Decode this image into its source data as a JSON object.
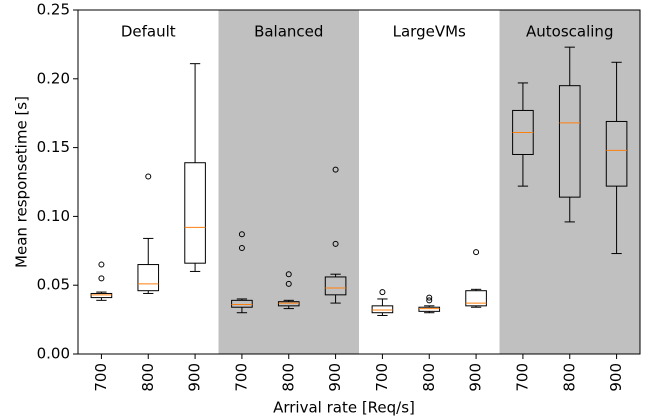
{
  "chart_data": {
    "type": "box",
    "x_label": "Arrival rate [Req/s]",
    "y_label": "Mean responsetime [s]",
    "ylim": [
      0,
      0.25
    ],
    "yticks": [
      {
        "value": 0,
        "label": "0.00"
      },
      {
        "value": 0.05,
        "label": "0.05"
      },
      {
        "value": 0.1,
        "label": "0.10"
      },
      {
        "value": 0.15,
        "label": "0.15"
      },
      {
        "value": 0.2,
        "label": "0.20"
      },
      {
        "value": 0.25,
        "label": "0.25"
      }
    ],
    "categories": [
      "700",
      "800",
      "900",
      "700",
      "800",
      "900",
      "700",
      "800",
      "900",
      "700",
      "800",
      "900"
    ],
    "groups": [
      {
        "label": "Default",
        "shaded": false
      },
      {
        "label": "Balanced",
        "shaded": true
      },
      {
        "label": "LargeVMs",
        "shaded": false
      },
      {
        "label": "Autoscaling",
        "shaded": true
      }
    ],
    "shade_color": "#c0c0c0",
    "box_color": "#000000",
    "median_color": "#ff7f0e",
    "boxes": [
      {
        "whislo": 0.039,
        "q1": 0.041,
        "med": 0.043,
        "q3": 0.044,
        "whishi": 0.045,
        "fliers": [
          0.055,
          0.065
        ]
      },
      {
        "whislo": 0.044,
        "q1": 0.046,
        "med": 0.051,
        "q3": 0.065,
        "whishi": 0.084,
        "fliers": [
          0.129
        ]
      },
      {
        "whislo": 0.06,
        "q1": 0.066,
        "med": 0.092,
        "q3": 0.139,
        "whishi": 0.211,
        "fliers": []
      },
      {
        "whislo": 0.03,
        "q1": 0.034,
        "med": 0.036,
        "q3": 0.039,
        "whishi": 0.04,
        "fliers": [
          0.077,
          0.087
        ]
      },
      {
        "whislo": 0.033,
        "q1": 0.035,
        "med": 0.037,
        "q3": 0.038,
        "whishi": 0.039,
        "fliers": [
          0.051,
          0.058
        ]
      },
      {
        "whislo": 0.037,
        "q1": 0.043,
        "med": 0.048,
        "q3": 0.056,
        "whishi": 0.058,
        "fliers": [
          0.08,
          0.134
        ]
      },
      {
        "whislo": 0.028,
        "q1": 0.03,
        "med": 0.032,
        "q3": 0.035,
        "whishi": 0.04,
        "fliers": [
          0.045
        ]
      },
      {
        "whislo": 0.03,
        "q1": 0.031,
        "med": 0.033,
        "q3": 0.034,
        "whishi": 0.035,
        "fliers": [
          0.039,
          0.041
        ]
      },
      {
        "whislo": 0.034,
        "q1": 0.035,
        "med": 0.037,
        "q3": 0.046,
        "whishi": 0.047,
        "fliers": [
          0.074
        ]
      },
      {
        "whislo": 0.122,
        "q1": 0.145,
        "med": 0.161,
        "q3": 0.177,
        "whishi": 0.197,
        "fliers": []
      },
      {
        "whislo": 0.096,
        "q1": 0.114,
        "med": 0.168,
        "q3": 0.195,
        "whishi": 0.223,
        "fliers": []
      },
      {
        "whislo": 0.073,
        "q1": 0.122,
        "med": 0.148,
        "q3": 0.169,
        "whishi": 0.212,
        "fliers": []
      }
    ]
  }
}
